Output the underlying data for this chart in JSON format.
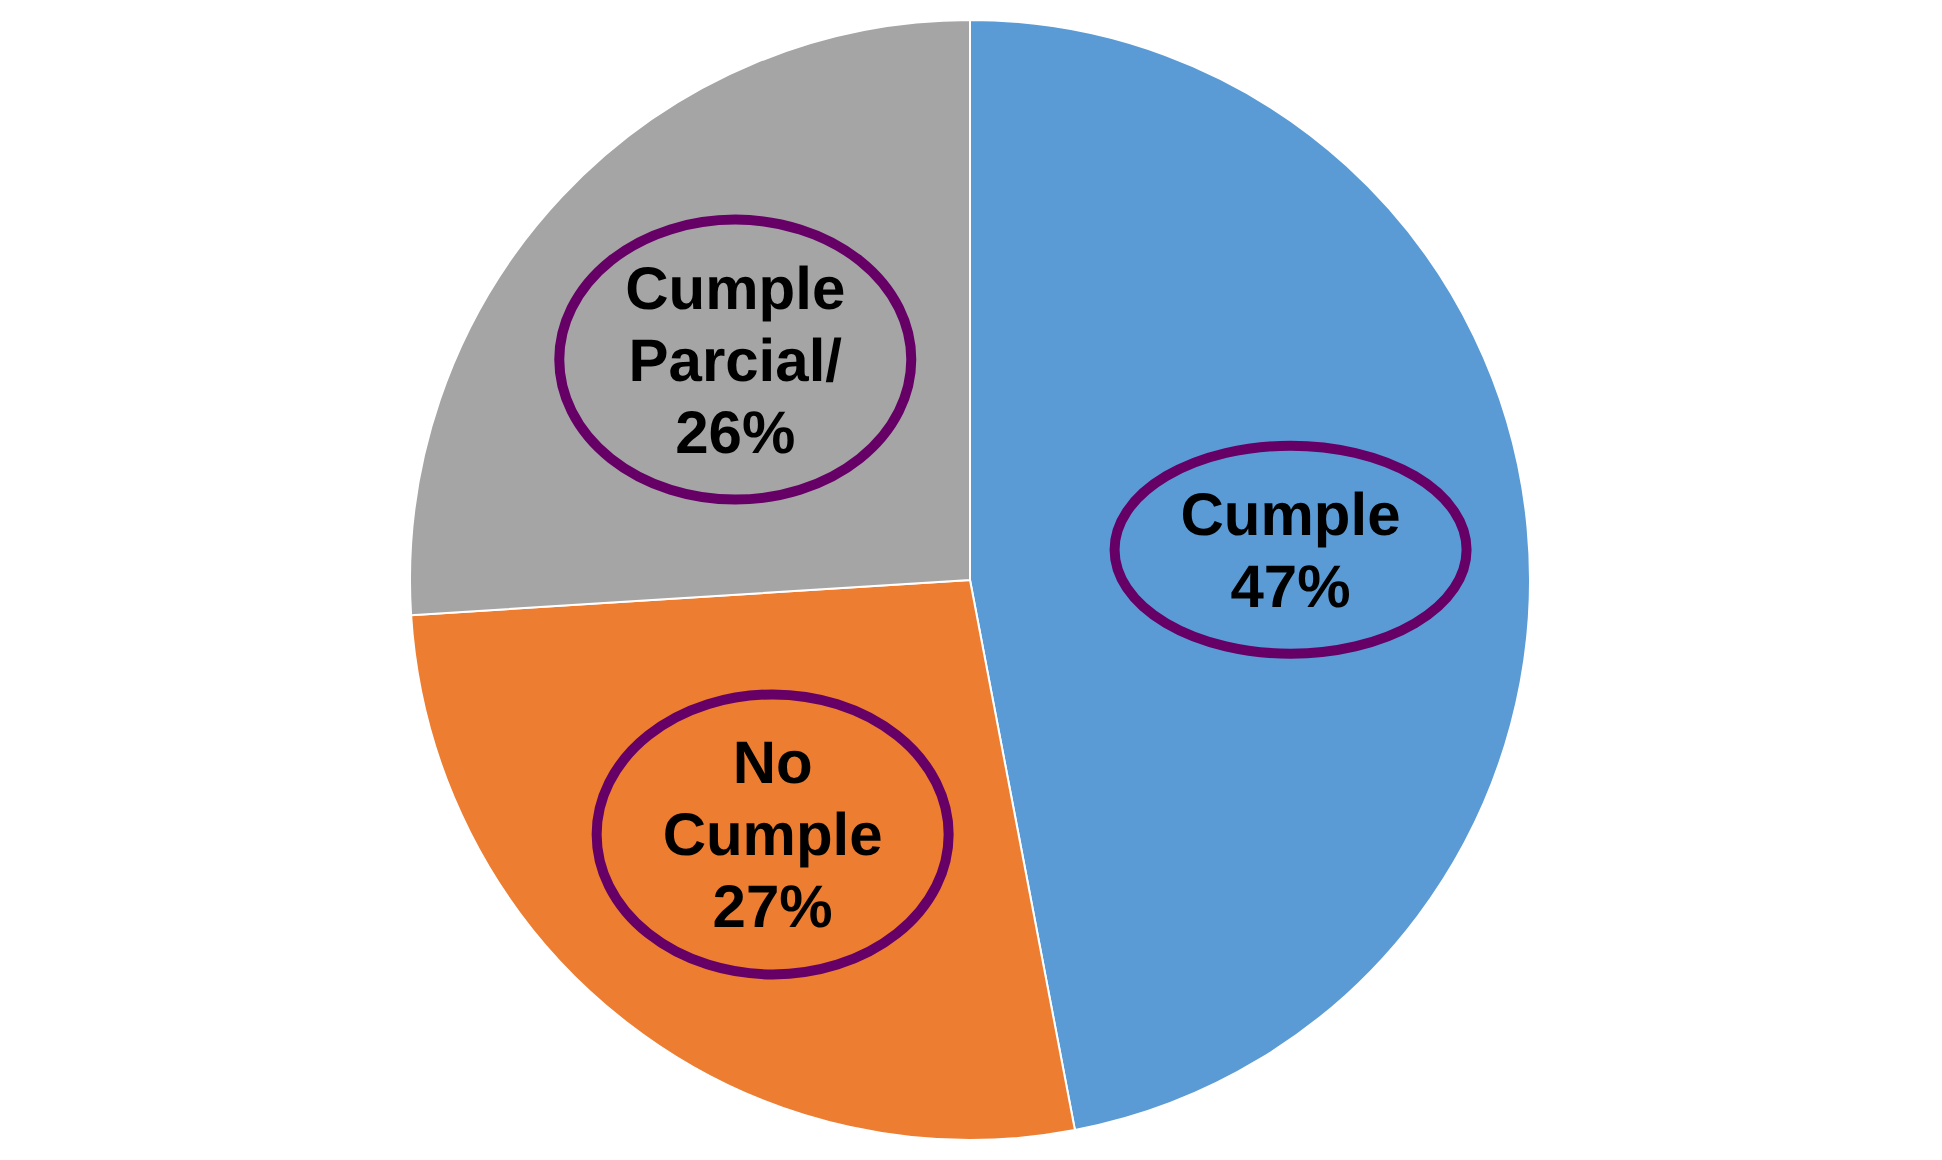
{
  "chart_data": {
    "type": "pie",
    "categories": [
      "Cumple",
      "No Cumple",
      "Cumple Parcial/"
    ],
    "values": [
      47,
      27,
      26
    ],
    "colors": [
      "#5b9bd5",
      "#ed7d31",
      "#a5a5a5"
    ],
    "value_labels": [
      "47%",
      "27%",
      "26%"
    ]
  }
}
